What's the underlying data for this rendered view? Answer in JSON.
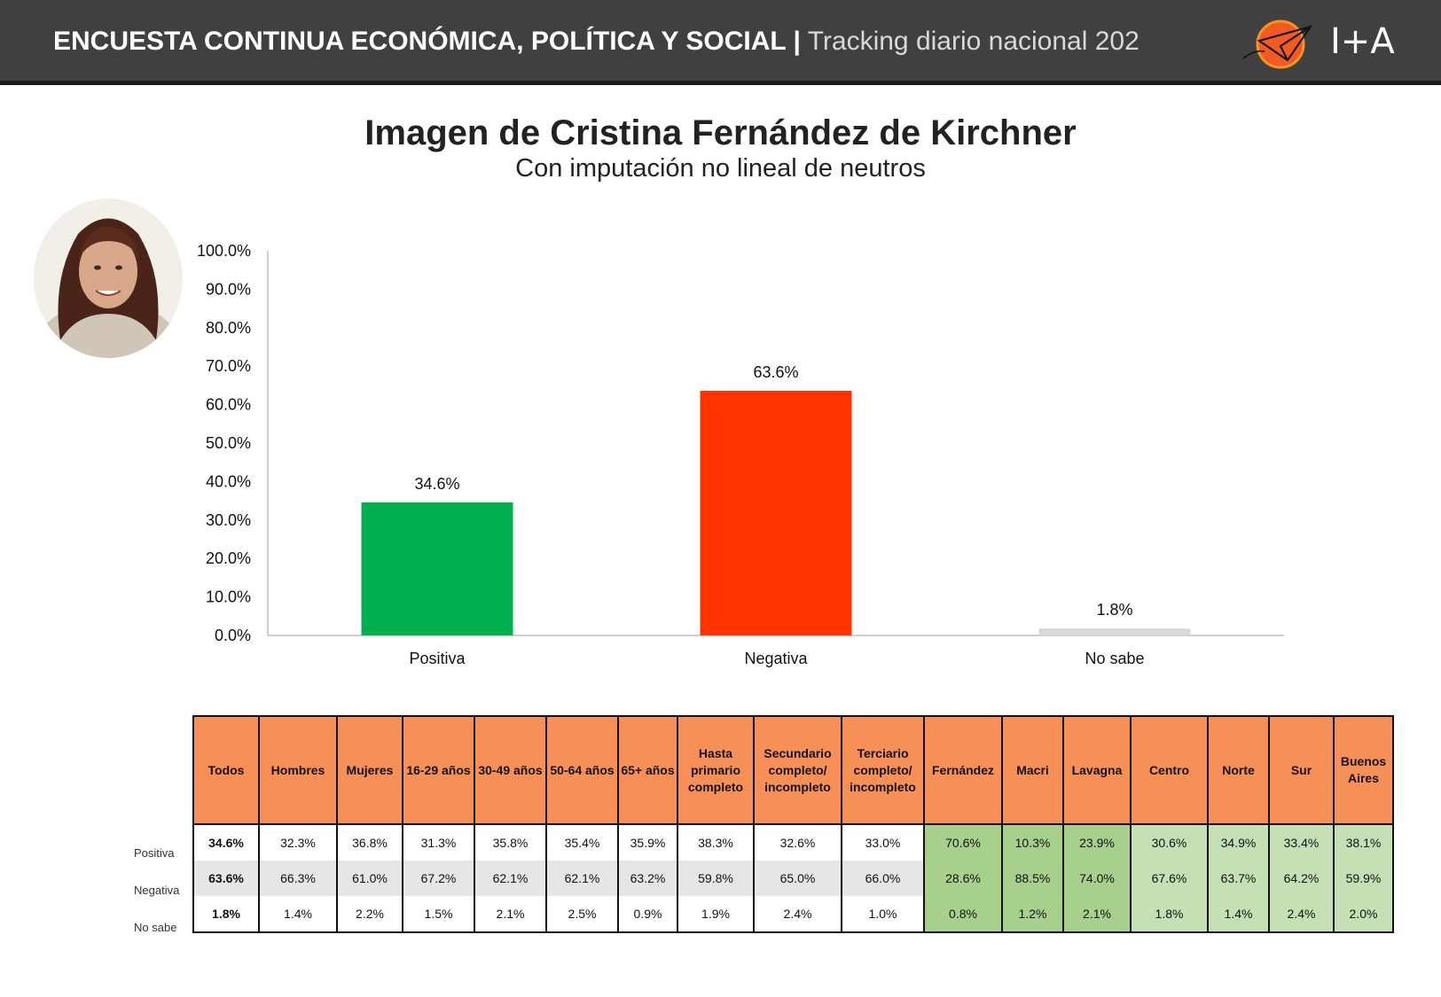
{
  "header": {
    "title_bold": "ENCUESTA CONTINUA ECONÓMICA, POLÍTICA Y SOCIAL |",
    "title_light": "Tracking diario nacional 202",
    "brand": "I+A"
  },
  "colors": {
    "header_bg": "#404040",
    "positiva": "#00b050",
    "negativa": "#ff3300",
    "no_sabe": "#d9d9d9",
    "table_header": "#f79056",
    "green_dark": "#a8d08d",
    "green_light": "#c5e0b4"
  },
  "chart_data": {
    "type": "bar",
    "title": "Imagen de Cristina Fernández de Kirchner",
    "subtitle": "Con imputación no lineal de neutros",
    "categories": [
      "Positiva",
      "Negativa",
      "No sabe"
    ],
    "values": [
      34.6,
      63.6,
      1.8
    ],
    "value_labels": [
      "34.6%",
      "63.6%",
      "1.8%"
    ],
    "bar_colors": [
      "#00b050",
      "#ff3300",
      "#d9d9d9"
    ],
    "ylim": [
      0,
      100
    ],
    "yticks": [
      "0.0%",
      "10.0%",
      "20.0%",
      "30.0%",
      "40.0%",
      "50.0%",
      "60.0%",
      "70.0%",
      "80.0%",
      "90.0%",
      "100.0%"
    ],
    "grid": false,
    "legend": "none"
  },
  "table": {
    "headers": [
      "Todos",
      "Hombres",
      "Mujeres",
      "16-29 años",
      "30-49 años",
      "50-64 años",
      "65+ años",
      "Hasta primario completo",
      "Secundario completo/ incompleto",
      "Terciario completo/ incompleto",
      "Fernández",
      "Macri",
      "Lavagna",
      "Centro",
      "Norte",
      "Sur",
      "Buenos Aires"
    ],
    "row_labels": [
      "Positiva",
      "Negativa",
      "No sabe"
    ],
    "rows": [
      [
        "34.6%",
        "32.3%",
        "36.8%",
        "31.3%",
        "35.8%",
        "35.4%",
        "35.9%",
        "38.3%",
        "32.6%",
        "33.0%",
        "70.6%",
        "10.3%",
        "23.9%",
        "30.6%",
        "34.9%",
        "33.4%",
        "38.1%"
      ],
      [
        "63.6%",
        "66.3%",
        "61.0%",
        "67.2%",
        "62.1%",
        "62.1%",
        "63.2%",
        "59.8%",
        "65.0%",
        "66.0%",
        "28.6%",
        "88.5%",
        "74.0%",
        "67.6%",
        "63.7%",
        "64.2%",
        "59.9%"
      ],
      [
        "1.8%",
        "1.4%",
        "2.2%",
        "1.5%",
        "2.1%",
        "2.5%",
        "0.9%",
        "1.9%",
        "2.4%",
        "1.0%",
        "0.8%",
        "1.2%",
        "2.1%",
        "1.8%",
        "1.4%",
        "2.4%",
        "2.0%"
      ]
    ]
  }
}
